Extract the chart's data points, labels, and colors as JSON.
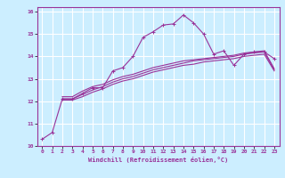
{
  "bg_color": "#cceeff",
  "grid_color": "#ffffff",
  "line_color": "#993399",
  "xlabel": "Windchill (Refroidissement éolien,°C)",
  "xlim": [
    -0.5,
    23.5
  ],
  "ylim": [
    10,
    16.2
  ],
  "xticks": [
    0,
    1,
    2,
    3,
    4,
    5,
    6,
    7,
    8,
    9,
    10,
    11,
    12,
    13,
    14,
    15,
    16,
    17,
    18,
    19,
    20,
    21,
    22,
    23
  ],
  "yticks": [
    10,
    11,
    12,
    13,
    14,
    15,
    16
  ],
  "line1_x": [
    0,
    1,
    2,
    3,
    4,
    5,
    6,
    7,
    8,
    9,
    10,
    11,
    12,
    13,
    14,
    15,
    16,
    17,
    18,
    19,
    20,
    21,
    22,
    23
  ],
  "line1_y": [
    10.3,
    10.6,
    12.1,
    12.1,
    12.35,
    12.6,
    12.6,
    13.35,
    13.5,
    14.0,
    14.85,
    15.1,
    15.4,
    15.45,
    15.85,
    15.5,
    15.0,
    14.1,
    14.25,
    13.6,
    14.1,
    14.2,
    14.2,
    13.9
  ],
  "line2_x": [
    2,
    3,
    4,
    5,
    6,
    7,
    8,
    9,
    10,
    11,
    12,
    13,
    14,
    15,
    16,
    17,
    18,
    19,
    20,
    21,
    22,
    23
  ],
  "line2_y": [
    12.1,
    12.1,
    12.3,
    12.5,
    12.65,
    12.85,
    13.0,
    13.1,
    13.25,
    13.4,
    13.5,
    13.6,
    13.7,
    13.8,
    13.85,
    13.9,
    13.95,
    14.0,
    14.1,
    14.15,
    14.2,
    13.4
  ],
  "line3_x": [
    2,
    3,
    4,
    5,
    6,
    7,
    8,
    9,
    10,
    11,
    12,
    13,
    14,
    15,
    16,
    17,
    18,
    19,
    20,
    21,
    22,
    23
  ],
  "line3_y": [
    12.2,
    12.2,
    12.45,
    12.65,
    12.75,
    12.95,
    13.1,
    13.2,
    13.35,
    13.5,
    13.6,
    13.7,
    13.8,
    13.85,
    13.9,
    13.95,
    14.0,
    14.05,
    14.15,
    14.2,
    14.25,
    13.45
  ],
  "line4_x": [
    2,
    3,
    4,
    5,
    6,
    7,
    8,
    9,
    10,
    11,
    12,
    13,
    14,
    15,
    16,
    17,
    18,
    19,
    20,
    21,
    22,
    23
  ],
  "line4_y": [
    12.05,
    12.05,
    12.2,
    12.4,
    12.55,
    12.75,
    12.9,
    13.0,
    13.15,
    13.3,
    13.4,
    13.5,
    13.6,
    13.65,
    13.75,
    13.8,
    13.85,
    13.9,
    14.0,
    14.05,
    14.1,
    13.35
  ]
}
